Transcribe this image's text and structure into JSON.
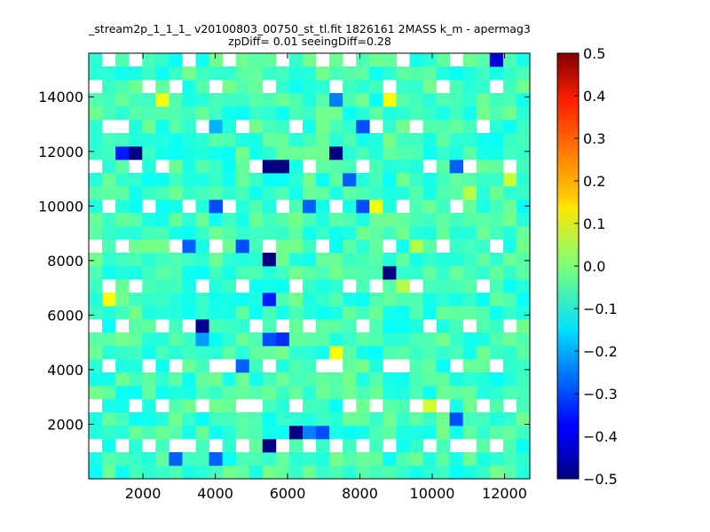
{
  "chart_data": {
    "type": "heatmap",
    "title": "_stream2p_1_1_1_ v20100803_00750_st_tl.fit 1826161 2MASS k_m - apermag3",
    "subtitle": "zpDiff= 0.01 seeingDiff=0.28",
    "xlabel": "",
    "ylabel": "",
    "xlim": [
      500,
      12700
    ],
    "ylim": [
      0,
      15600
    ],
    "x_ticks": [
      2000,
      4000,
      6000,
      8000,
      10000,
      12000
    ],
    "y_ticks": [
      2000,
      4000,
      6000,
      8000,
      10000,
      12000,
      14000
    ],
    "x_tick_labels": [
      "2000",
      "4000",
      "6000",
      "8000",
      "10000",
      "12000"
    ],
    "y_tick_labels": [
      "2000",
      "4000",
      "6000",
      "8000",
      "10000",
      "12000",
      "14000"
    ],
    "colorbar": {
      "colormap": "jet",
      "vmin": -0.5,
      "vmax": 0.5,
      "ticks": [
        -0.5,
        -0.4,
        -0.3,
        -0.2,
        -0.1,
        0.0,
        0.1,
        0.2,
        0.3,
        0.4,
        0.5
      ],
      "tick_labels": [
        "−0.5",
        "−0.4",
        "−0.3",
        "−0.2",
        "−0.1",
        "0.0",
        "0.1",
        "0.2",
        "0.3",
        "0.4",
        "0.5"
      ]
    },
    "grid": false,
    "bins": {
      "nx": 33,
      "ny": 32,
      "x_start": 500,
      "x_end": 12700,
      "y_start": 0,
      "y_end": 15600
    },
    "missing_cells": [
      [
        0,
        2
      ],
      [
        2,
        2
      ],
      [
        4,
        2
      ],
      [
        6,
        2
      ],
      [
        7,
        2
      ],
      [
        9,
        2
      ],
      [
        11,
        2
      ],
      [
        14,
        2
      ],
      [
        16,
        2
      ],
      [
        18,
        2
      ],
      [
        20,
        2
      ],
      [
        22,
        2
      ],
      [
        25,
        2
      ],
      [
        27,
        2
      ],
      [
        28,
        2
      ],
      [
        30,
        2
      ],
      [
        0,
        5
      ],
      [
        3,
        5
      ],
      [
        5,
        5
      ],
      [
        8,
        5
      ],
      [
        11,
        5
      ],
      [
        12,
        5
      ],
      [
        15,
        5
      ],
      [
        19,
        5
      ],
      [
        21,
        5
      ],
      [
        24,
        5
      ],
      [
        26,
        5
      ],
      [
        29,
        5
      ],
      [
        31,
        5
      ],
      [
        1,
        8
      ],
      [
        4,
        8
      ],
      [
        6,
        8
      ],
      [
        9,
        8
      ],
      [
        10,
        8
      ],
      [
        13,
        8
      ],
      [
        17,
        8
      ],
      [
        18,
        8
      ],
      [
        22,
        8
      ],
      [
        23,
        8
      ],
      [
        27,
        8
      ],
      [
        30,
        8
      ],
      [
        0,
        11
      ],
      [
        2,
        11
      ],
      [
        5,
        11
      ],
      [
        7,
        11
      ],
      [
        12,
        11
      ],
      [
        14,
        11
      ],
      [
        16,
        11
      ],
      [
        20,
        11
      ],
      [
        25,
        11
      ],
      [
        28,
        11
      ],
      [
        31,
        11
      ],
      [
        1,
        14
      ],
      [
        3,
        14
      ],
      [
        8,
        14
      ],
      [
        11,
        14
      ],
      [
        15,
        14
      ],
      [
        19,
        14
      ],
      [
        21,
        14
      ],
      [
        24,
        14
      ],
      [
        29,
        14
      ],
      [
        0,
        17
      ],
      [
        2,
        17
      ],
      [
        6,
        17
      ],
      [
        9,
        17
      ],
      [
        13,
        17
      ],
      [
        17,
        17
      ],
      [
        22,
        17
      ],
      [
        26,
        17
      ],
      [
        30,
        17
      ],
      [
        1,
        20
      ],
      [
        4,
        20
      ],
      [
        7,
        20
      ],
      [
        10,
        20
      ],
      [
        14,
        20
      ],
      [
        18,
        20
      ],
      [
        23,
        20
      ],
      [
        27,
        20
      ],
      [
        0,
        23
      ],
      [
        3,
        23
      ],
      [
        5,
        23
      ],
      [
        12,
        23
      ],
      [
        16,
        23
      ],
      [
        20,
        23
      ],
      [
        25,
        23
      ],
      [
        28,
        23
      ],
      [
        31,
        23
      ],
      [
        1,
        26
      ],
      [
        2,
        26
      ],
      [
        8,
        26
      ],
      [
        11,
        26
      ],
      [
        15,
        26
      ],
      [
        21,
        26
      ],
      [
        24,
        26
      ],
      [
        29,
        26
      ],
      [
        0,
        29
      ],
      [
        4,
        29
      ],
      [
        6,
        29
      ],
      [
        9,
        29
      ],
      [
        13,
        29
      ],
      [
        18,
        29
      ],
      [
        22,
        29
      ],
      [
        26,
        29
      ],
      [
        30,
        29
      ],
      [
        1,
        31
      ],
      [
        3,
        31
      ],
      [
        7,
        31
      ],
      [
        10,
        31
      ],
      [
        14,
        31
      ],
      [
        17,
        31
      ],
      [
        19,
        31
      ],
      [
        23,
        31
      ],
      [
        27,
        31
      ]
    ],
    "special_values": [
      [
        3,
        24,
        -0.5
      ],
      [
        13,
        23,
        -0.5
      ],
      [
        14,
        23,
        -0.5
      ],
      [
        13,
        16,
        -0.5
      ],
      [
        22,
        15,
        -0.5
      ],
      [
        8,
        11,
        -0.48
      ],
      [
        15,
        3,
        -0.5
      ],
      [
        13,
        2,
        -0.5
      ],
      [
        30,
        31,
        -0.42
      ],
      [
        2,
        24,
        -0.35
      ],
      [
        9,
        20,
        -0.3
      ],
      [
        11,
        17,
        -0.3
      ],
      [
        20,
        20,
        -0.3
      ],
      [
        17,
        3,
        -0.3
      ],
      [
        13,
        10,
        -0.3
      ],
      [
        14,
        10,
        -0.33
      ],
      [
        14,
        11,
        -0.32
      ],
      [
        19,
        22,
        -0.28
      ],
      [
        11,
        8,
        -0.28
      ],
      [
        28,
        11,
        -0.28
      ],
      [
        27,
        23,
        -0.28
      ],
      [
        7,
        17,
        -0.28
      ],
      [
        16,
        3,
        -0.25
      ],
      [
        6,
        1,
        -0.28
      ],
      [
        9,
        1,
        -0.28
      ],
      [
        8,
        10,
        -0.22
      ],
      [
        27,
        4,
        -0.3
      ],
      [
        18,
        28,
        -0.25
      ],
      [
        20,
        26,
        -0.3
      ],
      [
        16,
        20,
        -0.28
      ],
      [
        13,
        13,
        -0.35
      ],
      [
        18,
        24,
        -0.5
      ],
      [
        9,
        26,
        -0.2
      ],
      [
        5,
        28,
        0.11
      ],
      [
        22,
        28,
        0.12
      ],
      [
        21,
        20,
        0.11
      ],
      [
        18,
        9,
        0.12
      ],
      [
        23,
        14,
        0.05
      ],
      [
        28,
        21,
        0.05
      ],
      [
        24,
        17,
        0.05
      ],
      [
        1,
        13,
        0.12
      ],
      [
        22,
        8,
        0.1
      ],
      [
        25,
        5,
        0.08
      ],
      [
        20,
        19,
        -0.1
      ],
      [
        31,
        22,
        0.07
      ]
    ]
  }
}
